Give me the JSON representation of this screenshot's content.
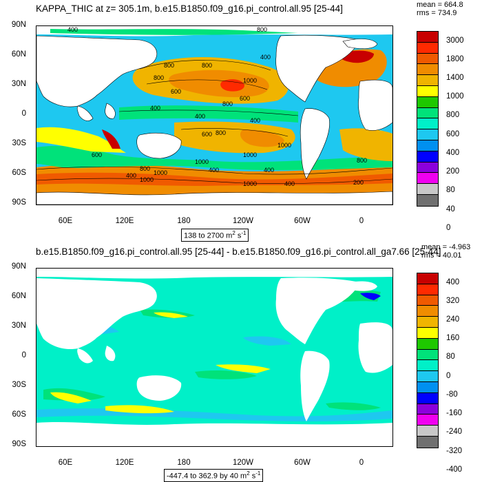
{
  "panel1": {
    "title": "KAPPA_THIC at z= 305.1m, b.e15.B1850.f09_g16.pi_control.all.95 [25-44]",
    "mean": "mean = 664.8",
    "rms": "rms = 734.9",
    "range_text": "138 to 2700 m",
    "range_unit_sup2": "2",
    "range_unit_s": " s",
    "range_unit_supm1": "-1",
    "contour_labels": [
      "400",
      "800",
      "800",
      "600",
      "800",
      "800",
      "400",
      "600",
      "800",
      "1000",
      "400",
      "400",
      "400",
      "600",
      "800",
      "1000",
      "1000",
      "1000",
      "600",
      "800",
      "1000",
      "400",
      "400",
      "400",
      "800",
      "1000",
      "1000",
      "400",
      "200"
    ],
    "colorbar": {
      "labels": [
        "3000",
        "1800",
        "1400",
        "1000",
        "800",
        "600",
        "400",
        "200",
        "80",
        "40",
        "0"
      ],
      "colors": [
        "#c80000",
        "#ff2a00",
        "#f05a00",
        "#f08c00",
        "#f0b400",
        "#ffff00",
        "#1ec800",
        "#00e27a",
        "#00f0c8",
        "#1ec8f0",
        "#0090f0",
        "#0000ff",
        "#8c00dc",
        "#f000f0",
        "#c8c8c8",
        "#707070"
      ]
    }
  },
  "panel2": {
    "title": "b.e15.B1850.f09_g16.pi_control.all.95 [25-44] - b.e15.B1850.f09_g16.pi_control.all_ga7.66 [25-44]",
    "mean": "mean = -4.963",
    "rms": "rms = 40.01",
    "range_text": "-447.4 to 362.9 by 40 m",
    "range_unit_sup2": "2",
    "range_unit_s": " s",
    "range_unit_supm1": "-1",
    "colorbar": {
      "labels": [
        "400",
        "320",
        "240",
        "160",
        "80",
        "0",
        "-80",
        "-160",
        "-240",
        "-320",
        "-400"
      ],
      "colors": [
        "#c80000",
        "#ff2a00",
        "#f05a00",
        "#f08c00",
        "#f0b400",
        "#ffff00",
        "#1ec800",
        "#00e27a",
        "#00f0c8",
        "#1ec8f0",
        "#0090f0",
        "#0000ff",
        "#8c00dc",
        "#f000f0",
        "#c8c8c8",
        "#707070"
      ]
    }
  },
  "axes": {
    "lat_labels": [
      "90N",
      "60N",
      "30N",
      "0",
      "30S",
      "60S",
      "90S"
    ],
    "lon_labels": [
      "60E",
      "120E",
      "180",
      "120W",
      "60W",
      "0"
    ]
  }
}
